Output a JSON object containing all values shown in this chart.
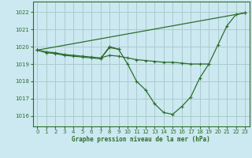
{
  "title": "Graphe pression niveau de la mer (hPa)",
  "background_color": "#cce8f0",
  "grid_color": "#aacccc",
  "line_color": "#2d6e2d",
  "ylim": [
    1015.4,
    1022.6
  ],
  "xlim": [
    -0.5,
    23.5
  ],
  "yticks": [
    1016,
    1017,
    1018,
    1019,
    1020,
    1021,
    1022
  ],
  "xticks": [
    0,
    1,
    2,
    3,
    4,
    5,
    6,
    7,
    8,
    9,
    10,
    11,
    12,
    13,
    14,
    15,
    16,
    17,
    18,
    19,
    20,
    21,
    22,
    23
  ],
  "series": [
    {
      "x": [
        0,
        1,
        2,
        3,
        4,
        5,
        6,
        7,
        8,
        9,
        10,
        11,
        12,
        13,
        14,
        15,
        16,
        17,
        18,
        19,
        20,
        21,
        22,
        23
      ],
      "y": [
        1019.8,
        1019.65,
        1019.6,
        1019.5,
        1019.45,
        1019.4,
        1019.35,
        1019.3,
        1020.0,
        1019.85,
        1019.0,
        1018.0,
        1017.5,
        1016.7,
        1016.2,
        1016.1,
        1016.55,
        1017.1,
        1018.2,
        1019.0,
        1020.1,
        1021.2,
        1021.85,
        1021.95
      ]
    },
    {
      "x": [
        0,
        1,
        2,
        3,
        4,
        5,
        6,
        7,
        8,
        9,
        10,
        11,
        12,
        13,
        14,
        15,
        16,
        17,
        18,
        19
      ],
      "y": [
        1019.8,
        1019.7,
        1019.65,
        1019.55,
        1019.5,
        1019.45,
        1019.4,
        1019.35,
        1019.5,
        1019.45,
        1019.35,
        1019.25,
        1019.2,
        1019.15,
        1019.1,
        1019.1,
        1019.05,
        1019.0,
        1019.0,
        1019.0
      ]
    },
    {
      "x": [
        0,
        23
      ],
      "y": [
        1019.8,
        1021.95
      ]
    },
    {
      "x": [
        7,
        8,
        9
      ],
      "y": [
        1019.3,
        1019.95,
        1019.85
      ]
    }
  ]
}
